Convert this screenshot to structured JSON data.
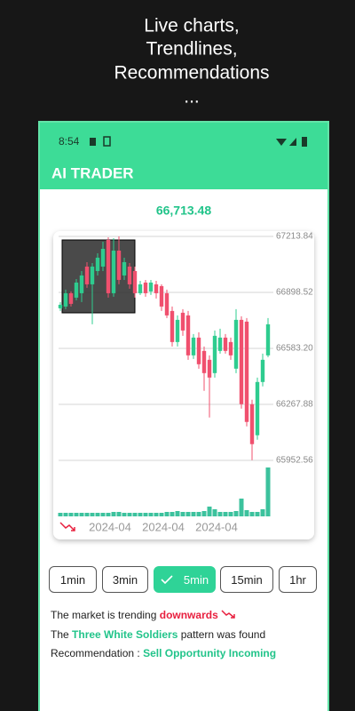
{
  "header": {
    "lines": [
      "Live charts,",
      "Trendlines,",
      "Recommendations",
      "..."
    ]
  },
  "status_bar": {
    "time": "8:54"
  },
  "app_bar": {
    "title": "AI TRADER"
  },
  "price": "66,713.48",
  "chart_data": {
    "type": "candlestick",
    "categories": [
      null,
      null,
      null,
      null,
      null,
      null,
      null,
      null,
      null,
      "2024-04",
      null,
      null,
      null,
      null,
      null,
      null,
      null,
      null,
      null,
      "2024-04",
      null,
      null,
      null,
      null,
      null,
      null,
      null,
      null,
      null,
      "2024-04",
      null,
      null,
      null,
      null,
      null,
      null,
      null,
      null,
      null,
      null
    ],
    "open": [
      66809,
      66819,
      66894,
      66869,
      66894,
      67044,
      66944,
      67019,
      67044,
      67194,
      66894,
      67134,
      66994,
      67044,
      67019,
      66894,
      66954,
      66904,
      66944,
      66934,
      66894,
      66794,
      66619,
      66784,
      66769,
      66544,
      66644,
      66569,
      66519,
      66444,
      66569,
      66644,
      66619,
      66469,
      66744,
      66734,
      66269,
      66094,
      66394,
      66544
    ],
    "high": [
      66844,
      66914,
      66904,
      66974,
      67019,
      67069,
      67064,
      67119,
      67184,
      67209,
      67204,
      67214,
      67094,
      67064,
      67044,
      66964,
      66969,
      66969,
      66964,
      66944,
      66914,
      66819,
      66769,
      66804,
      66794,
      66664,
      66674,
      66594,
      66544,
      66684,
      66694,
      66664,
      66644,
      66804,
      66764,
      66754,
      66294,
      66419,
      66554,
      66754
    ],
    "low": [
      66794,
      66804,
      66819,
      66854,
      66844,
      66924,
      66719,
      66994,
      67019,
      66869,
      66874,
      66944,
      66969,
      66919,
      66869,
      66884,
      66874,
      66884,
      66864,
      66794,
      66754,
      66594,
      66594,
      66654,
      66519,
      66524,
      66469,
      66344,
      66194,
      66419,
      66554,
      66554,
      66519,
      66444,
      66244,
      66144,
      65954,
      66069,
      66369,
      66534
    ],
    "close": [
      66829,
      66894,
      66834,
      66954,
      66994,
      66944,
      67044,
      67094,
      67144,
      66894,
      67134,
      66969,
      67069,
      66944,
      66894,
      66944,
      66894,
      66954,
      66894,
      66819,
      66769,
      66619,
      66744,
      66684,
      66544,
      66644,
      66494,
      66444,
      66419,
      66654,
      66644,
      66569,
      66544,
      66744,
      66269,
      66169,
      66044,
      66394,
      66519,
      66719
    ],
    "volume": [
      4,
      4,
      4,
      4,
      4,
      4,
      4,
      4,
      4,
      4,
      5,
      5,
      4,
      4,
      4,
      4,
      4,
      4,
      4,
      4,
      5,
      5,
      6,
      5,
      5,
      5,
      5,
      6,
      11,
      8,
      5,
      5,
      5,
      6,
      20,
      7,
      5,
      5,
      8,
      55
    ],
    "up_color": "#2ecc8f",
    "down_color": "#f0506e",
    "volume_color": "#3cc29d",
    "ylim": [
      65930,
      67230
    ],
    "yticks": [
      67213.84,
      66898.52,
      {
        "value": 66583.2,
        "label": "66583.20"
      },
      66267.88,
      65952.56
    ],
    "y2lim": [
      0,
      60
    ],
    "grid": true
  },
  "buttons": {
    "labels": [
      "1min",
      "3min",
      "5min",
      "15min",
      "1hr"
    ],
    "selected": 2
  },
  "messages": [
    {
      "prefix": "The market is trending",
      "highlight": "downwards",
      "color": "#e8203f"
    },
    {
      "prefix": "The",
      "highlight": "Three White Soldiers",
      "suffix": "pattern was found",
      "color": "#22c48a"
    },
    {
      "prefix": "Recommendation :",
      "highlight": "Sell Opportunity Incoming",
      "color": "#22c48a"
    }
  ]
}
